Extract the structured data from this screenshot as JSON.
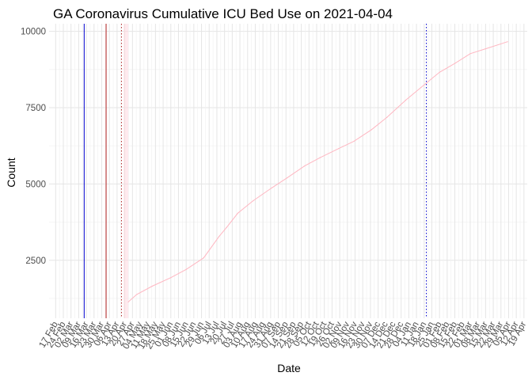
{
  "chart_data": {
    "type": "line",
    "title": "GA Coronavirus Cumulative ICU Bed Use on 2021-04-04",
    "xlabel": "Date",
    "ylabel": "Count",
    "x_range": [
      "2020-02-11",
      "2021-04-22"
    ],
    "ylim": [
      600,
      10250
    ],
    "y_ticks": [
      2500,
      5000,
      7500,
      10000
    ],
    "y_tick_labels": [
      "2500",
      "5000",
      "7500",
      "10000"
    ],
    "x_tick_dates": [
      "2020-02-17",
      "2020-02-24",
      "2020-03-02",
      "2020-03-09",
      "2020-03-16",
      "2020-03-23",
      "2020-03-30",
      "2020-04-06",
      "2020-04-13",
      "2020-04-20",
      "2020-04-27",
      "2020-05-04",
      "2020-05-11",
      "2020-05-18",
      "2020-05-25",
      "2020-06-01",
      "2020-06-08",
      "2020-06-15",
      "2020-06-22",
      "2020-06-29",
      "2020-07-06",
      "2020-07-13",
      "2020-07-20",
      "2020-07-27",
      "2020-08-03",
      "2020-08-10",
      "2020-08-17",
      "2020-08-24",
      "2020-08-31",
      "2020-09-07",
      "2020-09-14",
      "2020-09-21",
      "2020-09-28",
      "2020-10-05",
      "2020-10-12",
      "2020-10-19",
      "2020-10-26",
      "2020-11-02",
      "2020-11-09",
      "2020-11-16",
      "2020-11-23",
      "2020-11-30",
      "2020-12-07",
      "2020-12-14",
      "2020-12-21",
      "2020-12-28",
      "2021-01-04",
      "2021-01-11",
      "2021-01-18",
      "2021-01-25",
      "2021-02-01",
      "2021-02-08",
      "2021-02-15",
      "2021-02-22",
      "2021-03-01",
      "2021-03-08",
      "2021-03-15",
      "2021-03-22",
      "2021-03-29",
      "2021-04-05",
      "2021-04-12",
      "2021-04-19"
    ],
    "x_tick_labels": [
      "17 Feb",
      "24 Feb",
      "02 Mar",
      "09 Mar",
      "16 Mar",
      "23 Mar",
      "30 Mar",
      "06 Apr",
      "13 Apr",
      "20 Apr",
      "27 Apr",
      "04 May",
      "11 May",
      "18 May",
      "25 May",
      "01 Jun",
      "08 Jun",
      "15 Jun",
      "22 Jun",
      "29 Jun",
      "06 Jul",
      "13 Jul",
      "20 Jul",
      "27 Jul",
      "03 Aug",
      "10 Aug",
      "17 Aug",
      "24 Aug",
      "31 Aug",
      "07 Sep",
      "14 Sep",
      "21 Sep",
      "28 Sep",
      "05 Oct",
      "12 Oct",
      "19 Oct",
      "26 Oct",
      "02 Nov",
      "09 Nov",
      "16 Nov",
      "23 Nov",
      "30 Nov",
      "07 Dec",
      "14 Dec",
      "21 Dec",
      "28 Dec",
      "04 Jan",
      "11 Jan",
      "18 Jan",
      "25 Jan",
      "01 Feb",
      "08 Feb",
      "15 Feb",
      "22 Feb",
      "01 Mar",
      "08 Mar",
      "15 Mar",
      "22 Mar",
      "29 Mar",
      "05 Apr",
      "12 Apr",
      "19 Apr"
    ],
    "series": [
      {
        "color": "#ffb6c1",
        "x": [
          "2020-04-23",
          "2020-05-01",
          "2020-05-15",
          "2020-06-01",
          "2020-06-15",
          "2020-07-01",
          "2020-07-15",
          "2020-07-22",
          "2020-08-01",
          "2020-08-15",
          "2020-09-01",
          "2020-09-15",
          "2020-10-01",
          "2020-10-15",
          "2020-11-01",
          "2020-11-15",
          "2020-12-01",
          "2020-12-15",
          "2021-01-01",
          "2021-01-15",
          "2021-02-01",
          "2021-02-15",
          "2021-03-01",
          "2021-03-15",
          "2021-04-04"
        ],
        "y": [
          1130,
          1380,
          1650,
          1930,
          2200,
          2580,
          3280,
          3580,
          4040,
          4450,
          4870,
          5200,
          5590,
          5860,
          6160,
          6400,
          6780,
          7180,
          7740,
          8160,
          8660,
          8950,
          9270,
          9430,
          9660
        ]
      }
    ],
    "vlines": [
      {
        "x": "2020-03-14",
        "color": "#0000cd",
        "style": "solid"
      },
      {
        "x": "2020-04-03",
        "color": "#b22222",
        "style": "solid"
      },
      {
        "x": "2020-04-17",
        "color": "#b22222",
        "style": "dotted"
      },
      {
        "x": "2021-01-20",
        "color": "#0000cd",
        "style": "dotted"
      }
    ],
    "grid": true
  }
}
